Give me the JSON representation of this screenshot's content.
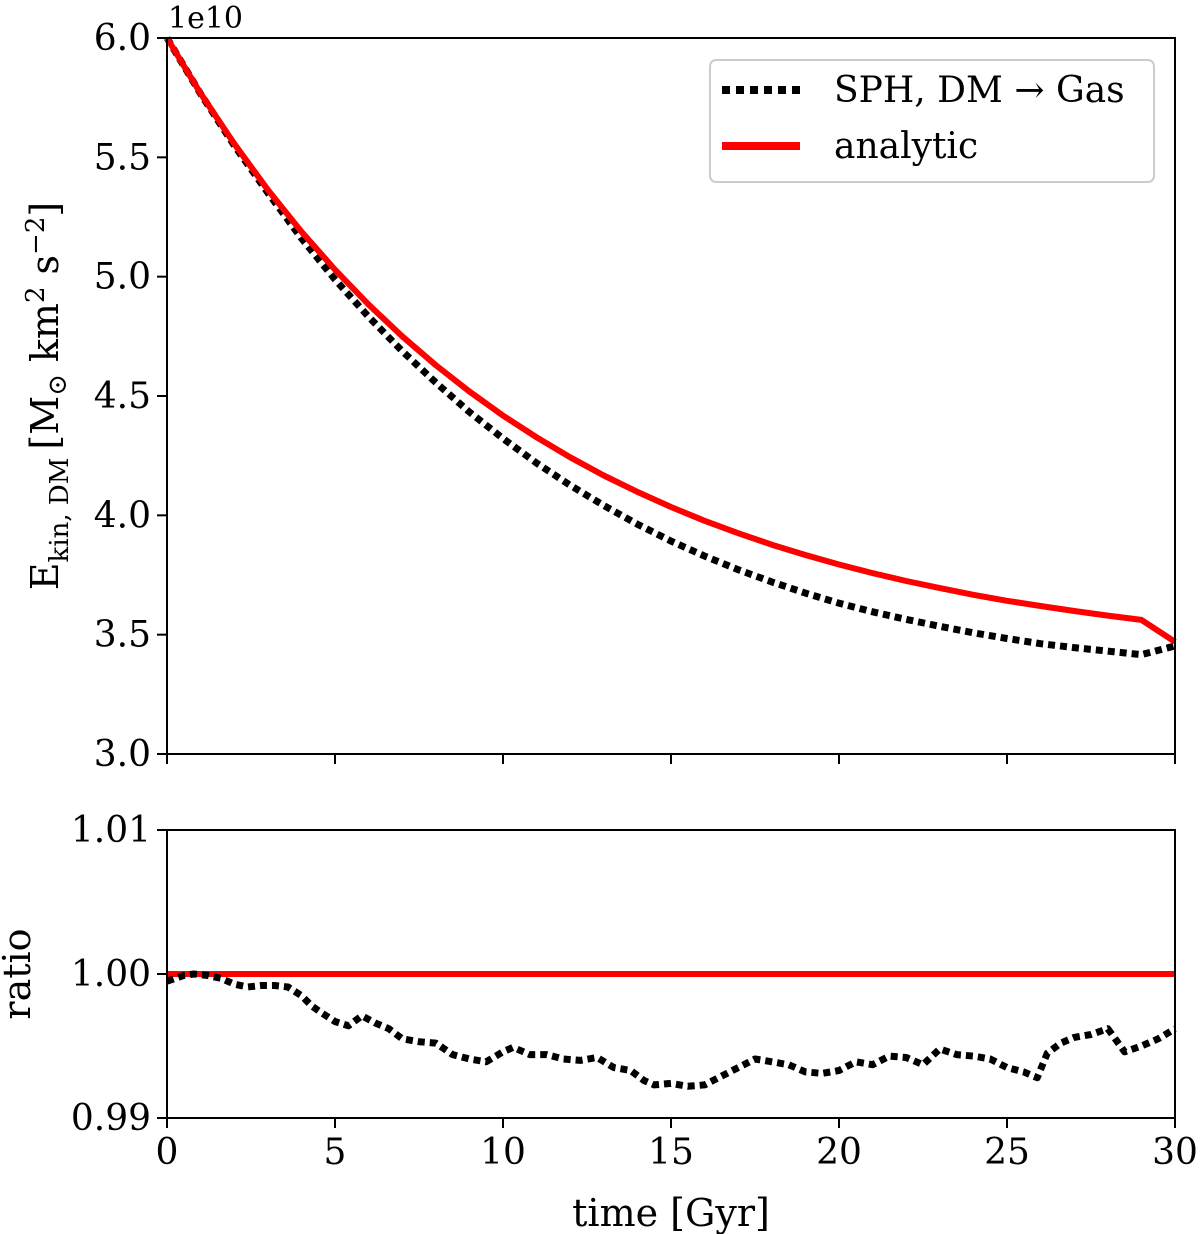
{
  "chart_data": [
    {
      "type": "line",
      "panel": "top",
      "ylabel_main": "E",
      "ylabel_sub": "kin, DM",
      "ylabel_unit_prefix": "[M",
      "ylabel_sun": "⊙",
      "ylabel_unit_km": "km",
      "ylabel_exp_km": "2",
      "ylabel_unit_s": "s",
      "ylabel_exp_s": "−2",
      "ylabel_close": "]",
      "offset_text": "1e10",
      "xlim": [
        0,
        30
      ],
      "ylim": [
        3.0,
        6.0
      ],
      "yticks": [
        "3.0",
        "3.5",
        "4.0",
        "4.5",
        "5.0",
        "5.5",
        "6.0"
      ],
      "xticks": [
        0,
        5,
        10,
        15,
        20,
        25,
        30
      ],
      "legend": {
        "placement": "top-right",
        "entries": [
          "SPH, DM → Gas",
          "analytic"
        ]
      },
      "series": [
        {
          "name": "SPH, DM → Gas",
          "style": "dotted",
          "color": "#000000",
          "x": [
            0,
            1,
            2,
            3,
            4,
            5,
            6,
            7,
            8,
            9,
            10,
            11,
            12,
            13,
            14,
            15,
            16,
            17,
            18,
            19,
            20,
            21,
            22,
            23,
            24,
            25,
            26,
            27,
            28,
            29,
            30
          ],
          "values": [
            6.0,
            5.766,
            5.55,
            5.352,
            5.161,
            4.988,
            4.832,
            4.688,
            4.556,
            4.433,
            4.322,
            4.219,
            4.126,
            4.041,
            3.963,
            3.892,
            3.829,
            3.772,
            3.721,
            3.674,
            3.632,
            3.596,
            3.564,
            3.535,
            3.508,
            3.484,
            3.462,
            3.446,
            3.431,
            3.416,
            3.453
          ]
        },
        {
          "name": "analytic",
          "style": "solid",
          "color": "#ff0000",
          "x": [
            0,
            1,
            2,
            3,
            4,
            5,
            6,
            7,
            8,
            9,
            10,
            11,
            12,
            13,
            14,
            15,
            16,
            17,
            18,
            19,
            20,
            21,
            22,
            23,
            24,
            25,
            26,
            27,
            28,
            29,
            30
          ],
          "values": [
            6.0,
            5.768,
            5.557,
            5.364,
            5.189,
            5.029,
            4.883,
            4.75,
            4.629,
            4.519,
            4.418,
            4.327,
            4.243,
            4.167,
            4.098,
            4.035,
            3.977,
            3.925,
            3.877,
            3.834,
            3.794,
            3.758,
            3.725,
            3.695,
            3.667,
            3.642,
            3.62,
            3.599,
            3.58,
            3.562,
            3.47
          ]
        }
      ]
    },
    {
      "type": "line",
      "panel": "bottom",
      "xlabel": "time [Gyr]",
      "ylabel": "ratio",
      "xlim": [
        0,
        30
      ],
      "ylim": [
        0.99,
        1.01
      ],
      "yticks": [
        "0.99",
        "1.00",
        "1.01"
      ],
      "xticks": [
        "0",
        "5",
        "10",
        "15",
        "20",
        "25",
        "30"
      ],
      "series": [
        {
          "name": "analytic",
          "style": "solid",
          "color": "#ff0000",
          "x": [
            0,
            30
          ],
          "values": [
            1.0,
            1.0
          ]
        },
        {
          "name": "SPH, DM → Gas",
          "style": "dotted",
          "color": "#000000",
          "x": [
            0,
            0.5,
            0.8,
            1.2,
            1.6,
            2.0,
            2.4,
            2.8,
            3.2,
            3.6,
            4.0,
            4.3,
            4.6,
            5.0,
            5.4,
            5.8,
            6.2,
            6.6,
            7.0,
            7.5,
            8.0,
            8.5,
            9.0,
            9.5,
            10.0,
            10.3,
            10.8,
            11.3,
            11.8,
            12.3,
            12.8,
            13.3,
            13.8,
            14.2,
            14.5,
            15.0,
            15.5,
            16.0,
            16.5,
            17.0,
            17.5,
            18.0,
            18.5,
            19.0,
            19.5,
            20.0,
            20.5,
            21.0,
            21.5,
            22.0,
            22.5,
            23.0,
            23.5,
            24.0,
            24.5,
            25.0,
            25.5,
            25.9,
            26.2,
            26.6,
            27.0,
            27.5,
            28.0,
            28.5,
            29.0,
            29.5,
            30.0
          ],
          "values": [
            0.9995,
            0.9999,
            1.0,
            0.9999,
            0.9997,
            0.9993,
            0.9991,
            0.9992,
            0.9992,
            0.9991,
            0.9985,
            0.9978,
            0.9973,
            0.9967,
            0.9964,
            0.9971,
            0.9966,
            0.9962,
            0.9955,
            0.9953,
            0.9952,
            0.9944,
            0.9941,
            0.9939,
            0.9946,
            0.9949,
            0.9944,
            0.9944,
            0.9941,
            0.994,
            0.9942,
            0.9935,
            0.9933,
            0.9926,
            0.9923,
            0.9924,
            0.9922,
            0.9923,
            0.9929,
            0.9935,
            0.9941,
            0.9939,
            0.9937,
            0.9932,
            0.9931,
            0.9933,
            0.9939,
            0.9937,
            0.9943,
            0.9942,
            0.9937,
            0.9948,
            0.9944,
            0.9943,
            0.9941,
            0.9935,
            0.9932,
            0.9928,
            0.9945,
            0.9952,
            0.9956,
            0.9958,
            0.9962,
            0.9946,
            0.995,
            0.9955,
            0.9962
          ]
        }
      ]
    }
  ]
}
